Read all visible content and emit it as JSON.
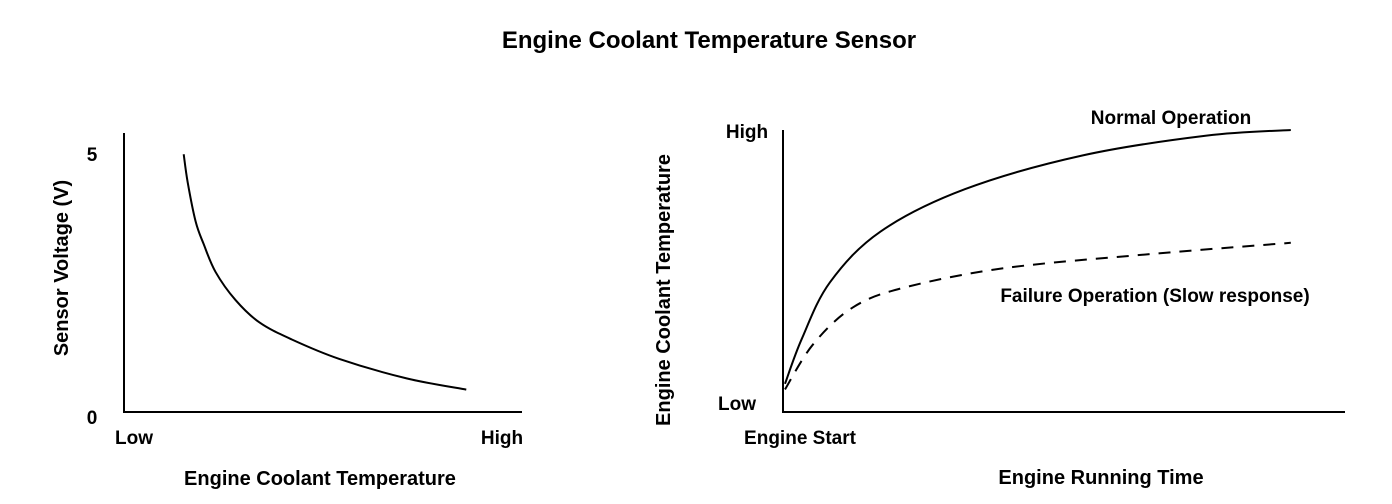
{
  "title": "Engine Coolant Temperature Sensor",
  "chart_data": [
    {
      "type": "line",
      "xlabel": "Engine Coolant Temperature",
      "ylabel": "Sensor Voltage (V)",
      "x_ticks": [
        "Low",
        "High"
      ],
      "y_ticks": [
        "0",
        "5"
      ],
      "xlim": [
        0,
        1
      ],
      "ylim": [
        0,
        5
      ],
      "series": [
        {
          "name": "Sensor voltage",
          "style": "solid",
          "x": [
            0.15,
            0.16,
            0.18,
            0.2,
            0.23,
            0.28,
            0.34,
            0.42,
            0.54,
            0.71,
            0.86
          ],
          "y": [
            4.6,
            4.1,
            3.4,
            3.0,
            2.5,
            2.0,
            1.6,
            1.3,
            0.95,
            0.6,
            0.4
          ]
        }
      ]
    },
    {
      "type": "line",
      "xlabel": "Engine Running Time",
      "ylabel": "Engine Coolant Temperature",
      "x_ticks": [
        "Engine Start"
      ],
      "y_ticks": [
        "Low",
        "High"
      ],
      "xlim": [
        0,
        1
      ],
      "ylim": [
        0,
        1
      ],
      "series": [
        {
          "name": "Normal Operation",
          "style": "solid",
          "x": [
            0.0,
            0.03,
            0.08,
            0.17,
            0.32,
            0.53,
            0.75,
            0.9
          ],
          "y": [
            0.1,
            0.26,
            0.46,
            0.64,
            0.79,
            0.91,
            0.98,
            1.0
          ]
        },
        {
          "name": "Failure Operation (Slow response)",
          "style": "dashed",
          "x": [
            0.0,
            0.05,
            0.12,
            0.21,
            0.39,
            0.65,
            0.9
          ],
          "y": [
            0.08,
            0.24,
            0.37,
            0.44,
            0.51,
            0.56,
            0.6
          ]
        }
      ]
    }
  ]
}
